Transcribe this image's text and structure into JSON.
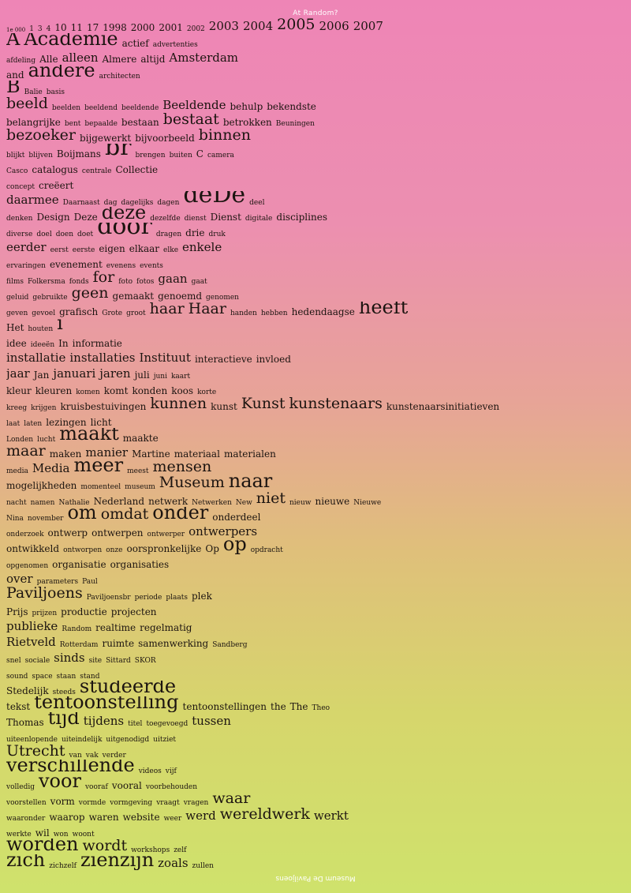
{
  "header": "At Random?",
  "footer": "Museum De Paviljoens",
  "lines": [
    [
      [
        "1e 000",
        2
      ],
      [
        "1",
        3
      ],
      [
        "3",
        3
      ],
      [
        "4",
        3
      ],
      [
        "10",
        4
      ],
      [
        "11",
        4
      ],
      [
        "17",
        4
      ],
      [
        "1998",
        4
      ],
      [
        "2000",
        4
      ],
      [
        "2001",
        4
      ],
      [
        "2002",
        3
      ],
      [
        "2003",
        5
      ],
      [
        "2004",
        5
      ],
      [
        "2005",
        6
      ],
      [
        "2006",
        5
      ],
      [
        "2007",
        5
      ]
    ],
    [
      [
        "A",
        7
      ],
      [
        "Academie",
        7
      ],
      [
        "actief",
        4
      ],
      [
        "advertenties",
        3
      ]
    ],
    [
      [
        "afdeling",
        3
      ],
      [
        "Alle",
        4
      ],
      [
        "alleen",
        5
      ],
      [
        "Almere",
        4
      ],
      [
        "altijd",
        4
      ],
      [
        "Amsterdam",
        5
      ]
    ],
    [
      [
        "and",
        4
      ],
      [
        "andere",
        7
      ],
      [
        "architecten",
        3
      ]
    ],
    [
      [
        "B",
        7
      ],
      [
        "Balie",
        3
      ],
      [
        "basis",
        3
      ]
    ],
    [
      [
        "beeld",
        6
      ],
      [
        "beelden",
        3
      ],
      [
        "beeldend",
        3
      ],
      [
        "beeldende",
        3
      ],
      [
        "Beeldende",
        5
      ],
      [
        "behulp",
        4
      ],
      [
        "bekendste",
        4
      ]
    ],
    [
      [
        "belangrijke",
        4
      ],
      [
        "bent",
        3
      ],
      [
        "bepaalde",
        3
      ],
      [
        "bestaan",
        4
      ],
      [
        "bestaat",
        6
      ],
      [
        "betrokken",
        4
      ],
      [
        "Beuningen",
        3
      ]
    ],
    [
      [
        "bezoeker",
        6
      ],
      [
        "bijgewerkt",
        4
      ],
      [
        "bijvoorbeeld",
        4
      ],
      [
        "binnen",
        6
      ]
    ],
    [
      [
        "blijkt",
        3
      ],
      [
        "blijven",
        3
      ],
      [
        "Boijmans",
        4
      ],
      [
        "br",
        8
      ],
      [
        "brengen",
        3
      ],
      [
        "buiten",
        3
      ],
      [
        "C",
        4
      ],
      [
        "camera",
        3
      ]
    ],
    [
      [
        "Casco",
        3
      ],
      [
        "catalogus",
        4
      ],
      [
        "centrale",
        3
      ],
      [
        "Collectie",
        4
      ]
    ],
    [
      [
        "concept",
        3
      ],
      [
        "creëert",
        4
      ]
    ],
    [
      [
        "daarmee",
        5
      ],
      [
        "Daarnaast",
        3
      ],
      [
        "dag",
        3
      ],
      [
        "dagelijks",
        3
      ],
      [
        "dagen",
        3
      ],
      [
        "deDe",
        8
      ],
      [
        "deel",
        3
      ]
    ],
    [
      [
        "denken",
        3
      ],
      [
        "Design",
        4
      ],
      [
        "Deze",
        4
      ],
      [
        "deze",
        7
      ],
      [
        "dezelfde",
        3
      ],
      [
        "dienst",
        3
      ],
      [
        "Dienst",
        4
      ],
      [
        "digitale",
        3
      ],
      [
        "disciplines",
        4
      ]
    ],
    [
      [
        "diverse",
        3
      ],
      [
        "doel",
        3
      ],
      [
        "doen",
        3
      ],
      [
        "doet",
        3
      ],
      [
        "door",
        8
      ],
      [
        "dragen",
        3
      ],
      [
        "drie",
        4
      ],
      [
        "druk",
        3
      ]
    ],
    [
      [
        "eerder",
        5
      ],
      [
        "eerst",
        3
      ],
      [
        "eerste",
        3
      ],
      [
        "eigen",
        4
      ],
      [
        "elkaar",
        4
      ],
      [
        "elke",
        3
      ],
      [
        "enkele",
        5
      ]
    ],
    [
      [
        "ervaringen",
        3
      ],
      [
        "evenement",
        4
      ],
      [
        "evenens",
        3
      ],
      [
        "events",
        3
      ]
    ],
    [
      [
        "films",
        3
      ],
      [
        "Folkersma",
        3
      ],
      [
        "fonds",
        3
      ],
      [
        "for",
        6
      ],
      [
        "foto",
        3
      ],
      [
        "fotos",
        3
      ],
      [
        "gaan",
        5
      ],
      [
        "gaat",
        3
      ]
    ],
    [
      [
        "geluid",
        3
      ],
      [
        "gebruikte",
        3
      ],
      [
        "geen",
        6
      ],
      [
        "gemaakt",
        4
      ],
      [
        "genoemd",
        4
      ],
      [
        "genomen",
        3
      ]
    ],
    [
      [
        "geven",
        3
      ],
      [
        "gevoel",
        3
      ],
      [
        "grafisch",
        4
      ],
      [
        "Grote",
        3
      ],
      [
        "groot",
        3
      ],
      [
        "haar",
        6
      ],
      [
        "Haar",
        6
      ],
      [
        "handen",
        3
      ],
      [
        "hebben",
        3
      ],
      [
        "hedendaagse",
        4
      ],
      [
        "heeft",
        7
      ]
    ],
    [
      [
        "Het",
        4
      ],
      [
        "houten",
        3
      ],
      [
        "i",
        7
      ]
    ],
    [
      [
        "idee",
        4
      ],
      [
        "ideeën",
        3
      ],
      [
        "In",
        4
      ],
      [
        "informatie",
        4
      ]
    ],
    [
      [
        "installatie",
        5
      ],
      [
        "installaties",
        5
      ],
      [
        "Instituut",
        5
      ],
      [
        "interactieve",
        4
      ],
      [
        "invloed",
        4
      ]
    ],
    [
      [
        "jaar",
        5
      ],
      [
        "Jan",
        4
      ],
      [
        "januari",
        5
      ],
      [
        "jaren",
        5
      ],
      [
        "juli",
        4
      ],
      [
        "juni",
        3
      ],
      [
        "kaart",
        3
      ]
    ],
    [
      [
        "kleur",
        4
      ],
      [
        "kleuren",
        4
      ],
      [
        "komen",
        3
      ],
      [
        "komt",
        4
      ],
      [
        "konden",
        4
      ],
      [
        "koos",
        4
      ],
      [
        "korte",
        3
      ]
    ],
    [
      [
        "kreeg",
        3
      ],
      [
        "krijgen",
        3
      ],
      [
        "kruisbestuivingen",
        4
      ],
      [
        "kunnen",
        6
      ],
      [
        "kunst",
        4
      ],
      [
        "Kunst",
        6
      ],
      [
        "kunstenaars",
        6
      ],
      [
        "kunstenaarsinitiatieven",
        4
      ]
    ],
    [
      [
        "laat",
        3
      ],
      [
        "laten",
        3
      ],
      [
        "lezingen",
        4
      ],
      [
        "licht",
        4
      ]
    ],
    [
      [
        "Londen",
        3
      ],
      [
        "lucht",
        3
      ],
      [
        "maakt",
        7
      ],
      [
        "maakte",
        4
      ]
    ],
    [
      [
        "maar",
        6
      ],
      [
        "maken",
        4
      ],
      [
        "manier",
        5
      ],
      [
        "Martine",
        4
      ],
      [
        "materiaal",
        4
      ],
      [
        "materialen",
        4
      ]
    ],
    [
      [
        "media",
        3
      ],
      [
        "Media",
        5
      ],
      [
        "meer",
        7
      ],
      [
        "meest",
        3
      ],
      [
        "mensen",
        6
      ]
    ],
    [
      [
        "mogelijkheden",
        4
      ],
      [
        "momenteel",
        3
      ],
      [
        "museum",
        3
      ],
      [
        "Museum",
        6
      ],
      [
        "naar",
        7
      ]
    ],
    [
      [
        "nacht",
        3
      ],
      [
        "namen",
        3
      ],
      [
        "Nathalie",
        3
      ],
      [
        "Nederland",
        4
      ],
      [
        "netwerk",
        4
      ],
      [
        "Netwerken",
        3
      ],
      [
        "New",
        3
      ],
      [
        "niet",
        6
      ],
      [
        "nieuw",
        3
      ],
      [
        "nieuwe",
        4
      ],
      [
        "Nieuwe",
        3
      ]
    ],
    [
      [
        "Nina",
        3
      ],
      [
        "november",
        3
      ],
      [
        "om",
        7
      ],
      [
        "omdat",
        6
      ],
      [
        "onder",
        7
      ],
      [
        "onderdeel",
        4
      ]
    ],
    [
      [
        "onderzoek",
        3
      ],
      [
        "ontwerp",
        4
      ],
      [
        "ontwerpen",
        4
      ],
      [
        "ontwerper",
        3
      ],
      [
        "ontwerpers",
        5
      ]
    ],
    [
      [
        "ontwikkeld",
        4
      ],
      [
        "ontworpen",
        3
      ],
      [
        "onze",
        3
      ],
      [
        "oorspronkelijke",
        4
      ],
      [
        "Op",
        4
      ],
      [
        "op",
        7
      ],
      [
        "opdracht",
        3
      ]
    ],
    [
      [
        "opgenomen",
        3
      ],
      [
        "organisatie",
        4
      ],
      [
        "organisaties",
        4
      ]
    ],
    [
      [
        "over",
        5
      ],
      [
        "parameters",
        3
      ],
      [
        "Paul",
        3
      ]
    ],
    [
      [
        "Paviljoens",
        6
      ],
      [
        "Paviljoensbr",
        3
      ],
      [
        "periode",
        3
      ],
      [
        "plaats",
        3
      ],
      [
        "plek",
        4
      ]
    ],
    [
      [
        "Prijs",
        4
      ],
      [
        "prijzen",
        3
      ],
      [
        "productie",
        4
      ],
      [
        "projecten",
        4
      ]
    ],
    [
      [
        "publieke",
        5
      ],
      [
        "Random",
        3
      ],
      [
        "realtime",
        4
      ],
      [
        "regelmatig",
        4
      ]
    ],
    [
      [
        "Rietveld",
        5
      ],
      [
        "Rotterdam",
        3
      ],
      [
        "ruimte",
        4
      ],
      [
        "samenwerking",
        4
      ],
      [
        "Sandberg",
        3
      ]
    ],
    [
      [
        "snel",
        3
      ],
      [
        "sociale",
        3
      ],
      [
        "sinds",
        5
      ],
      [
        "site",
        3
      ],
      [
        "Sittard",
        3
      ],
      [
        "SKOR",
        3
      ]
    ],
    [
      [
        "sound",
        3
      ],
      [
        "space",
        3
      ],
      [
        "staan",
        3
      ],
      [
        "stand",
        3
      ]
    ],
    [
      [
        "Stedelijk",
        4
      ],
      [
        "steeds",
        3
      ],
      [
        "studeerde",
        7
      ]
    ],
    [
      [
        "tekst",
        4
      ],
      [
        "tentoonstelling",
        7
      ],
      [
        "tentoonstellingen",
        4
      ],
      [
        "the",
        4
      ],
      [
        "The",
        4
      ],
      [
        "Theo",
        3
      ]
    ],
    [
      [
        "Thomas",
        4
      ],
      [
        "tijd",
        7
      ],
      [
        "tijdens",
        5
      ],
      [
        "titel",
        3
      ],
      [
        "toegevoegd",
        3
      ],
      [
        "tussen",
        5
      ]
    ],
    [
      [
        "uiteenlopende",
        3
      ],
      [
        "uiteindelijk",
        3
      ],
      [
        "uitgenodigd",
        3
      ],
      [
        "uitziet",
        3
      ]
    ],
    [
      [
        "Utrecht",
        6
      ],
      [
        "van",
        3
      ],
      [
        "vak",
        3
      ],
      [
        "verder",
        3
      ]
    ],
    [
      [
        "verschillende",
        7
      ],
      [
        "videos",
        3
      ],
      [
        "vijf",
        3
      ]
    ],
    [
      [
        "volledig",
        3
      ],
      [
        "voor",
        7
      ],
      [
        "vooraf",
        3
      ],
      [
        "vooral",
        4
      ],
      [
        "voorbehouden",
        3
      ]
    ],
    [
      [
        "voorstellen",
        3
      ],
      [
        "vorm",
        4
      ],
      [
        "vormde",
        3
      ],
      [
        "vormgeving",
        3
      ],
      [
        "vraagt",
        3
      ],
      [
        "vragen",
        3
      ],
      [
        "waar",
        6
      ]
    ],
    [
      [
        "waaronder",
        3
      ],
      [
        "waarop",
        4
      ],
      [
        "waren",
        4
      ],
      [
        "website",
        4
      ],
      [
        "weer",
        3
      ],
      [
        "werd",
        5
      ],
      [
        "wereldwerk",
        6
      ],
      [
        "werkt",
        5
      ]
    ],
    [
      [
        "werkte",
        3
      ],
      [
        "wil",
        4
      ],
      [
        "won",
        3
      ],
      [
        "woont",
        3
      ]
    ],
    [
      [
        "worden",
        7
      ],
      [
        "wordt",
        6
      ],
      [
        "workshops",
        3
      ],
      [
        "zelf",
        3
      ]
    ],
    [
      [
        "zich",
        7
      ],
      [
        "zichzelf",
        3
      ],
      [
        "zienzijn",
        7
      ],
      [
        "zoals",
        5
      ],
      [
        "zullen",
        3
      ]
    ]
  ]
}
